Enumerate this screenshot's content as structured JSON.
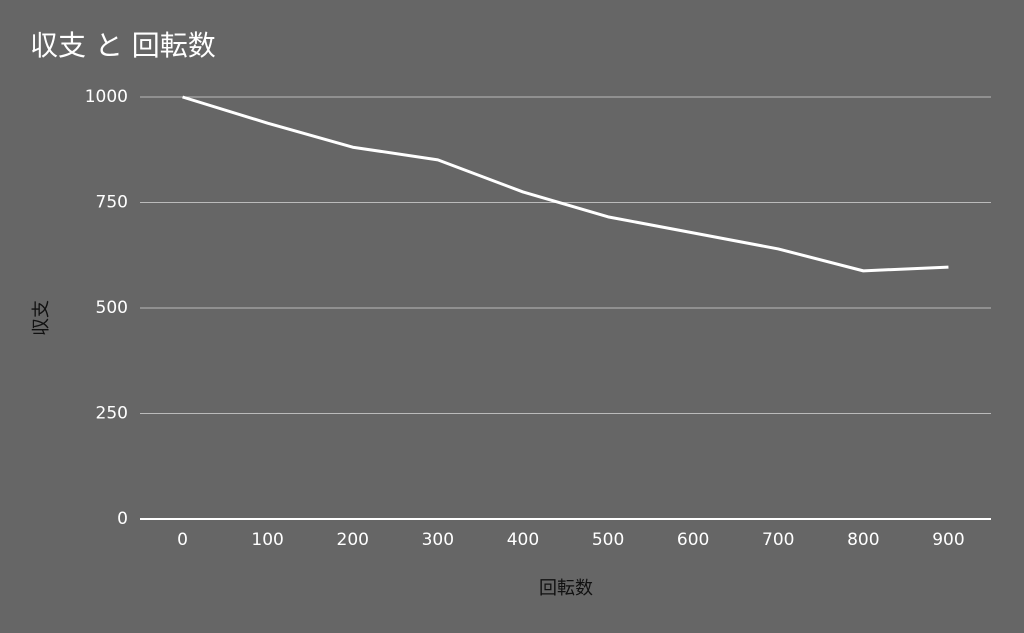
{
  "chart_data": {
    "type": "line",
    "title": "収支 と 回転数",
    "x_label": "回転数",
    "y_label": "収支",
    "categories": [
      "0",
      "100",
      "200",
      "300",
      "400",
      "500",
      "600",
      "700",
      "800",
      "900"
    ],
    "values": [
      1000,
      938,
      881,
      851,
      775,
      716,
      678,
      640,
      588,
      597
    ],
    "color": "#ffffff",
    "ylim": [
      0,
      1000
    ],
    "yticks": [
      0,
      250,
      500,
      750,
      1000
    ],
    "grid": true
  }
}
